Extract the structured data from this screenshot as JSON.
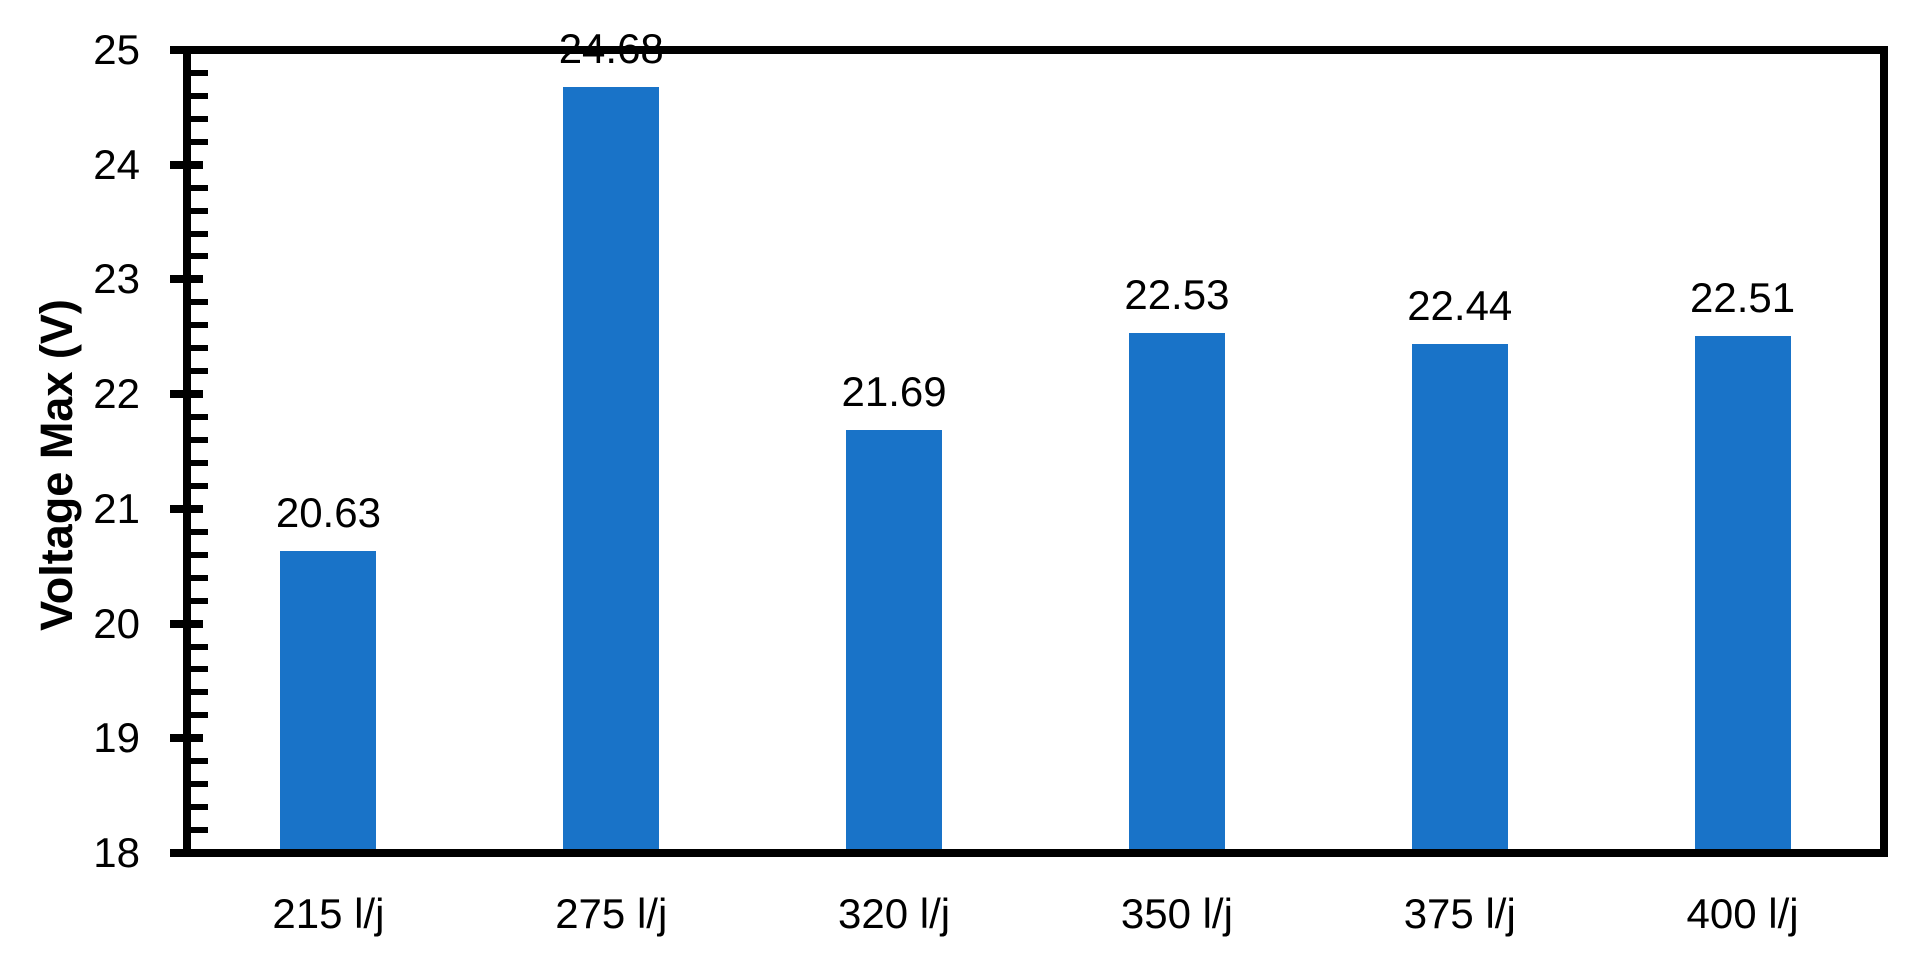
{
  "chart_data": {
    "type": "bar",
    "title": "",
    "categories": [
      "215 l/j",
      "275 l/j",
      "320 l/j",
      "350 l/j",
      "375 l/j",
      "400 l/j"
    ],
    "values": [
      20.63,
      24.68,
      21.69,
      22.53,
      22.44,
      22.51
    ],
    "data_labels": [
      "20.63",
      "24.68",
      "21.69",
      "22.53",
      "22.44",
      "22.51"
    ],
    "xlabel": "",
    "ylabel": "Voltage Max (V)",
    "ylim": [
      18,
      25
    ],
    "ytick_step": 1,
    "yticks": [
      "18",
      "19",
      "20",
      "21",
      "22",
      "23",
      "24",
      "25"
    ],
    "minor_tick_step": 0.2,
    "grid": false,
    "legend": null,
    "bar_color": "#1973C8",
    "axis_color": "#000000",
    "text_color": "#000000",
    "plot_border": "full-box"
  }
}
